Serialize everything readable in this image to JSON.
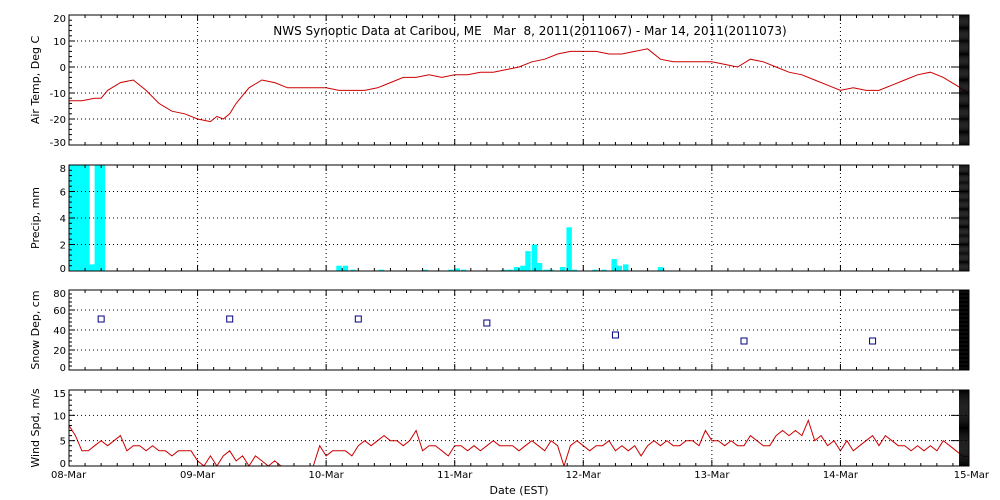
{
  "chart_data": {
    "type": "multi-panel time series",
    "title": "NWS Synoptic Data at Caribou, ME   Mar  8, 2011(2011067) - Mar 14, 2011(2011073)",
    "xlabel": "Date (EST)",
    "x_ticks": [
      "08-Mar",
      "09-Mar",
      "10-Mar",
      "11-Mar",
      "12-Mar",
      "13-Mar",
      "14-Mar",
      "15-Mar"
    ],
    "x_unit": "days since 08-Mar 00:00 EST",
    "xlim": [
      0,
      7
    ],
    "grid": true,
    "colors": {
      "temp": "#cc0000",
      "precip": "#00ffff",
      "snow": "#000080",
      "wind": "#cc0000",
      "grid": "#000000"
    },
    "panels": [
      {
        "id": "air-temp",
        "type": "line",
        "ylabel": "Air Temp, Deg C",
        "ylim": [
          -30,
          20
        ],
        "y_ticks": [
          -30,
          -20,
          -10,
          0,
          10,
          20
        ],
        "series": [
          {
            "x": [
              0.0,
              0.1,
              0.2,
              0.25,
              0.3,
              0.4,
              0.5,
              0.6,
              0.7,
              0.8,
              0.9,
              1.0,
              1.1,
              1.15,
              1.2,
              1.25,
              1.3,
              1.4,
              1.5,
              1.6,
              1.7,
              1.8,
              1.9,
              2.0,
              2.1,
              2.2,
              2.3,
              2.4,
              2.5,
              2.6,
              2.7,
              2.8,
              2.9,
              3.0,
              3.1,
              3.2,
              3.3,
              3.4,
              3.5,
              3.6,
              3.7,
              3.8,
              3.9,
              4.0,
              4.1,
              4.2,
              4.3,
              4.4,
              4.5,
              4.6,
              4.7,
              4.8,
              4.9,
              5.0,
              5.1,
              5.2,
              5.3,
              5.4,
              5.5,
              5.6,
              5.7,
              5.8,
              5.9,
              6.0,
              6.1,
              6.2,
              6.3,
              6.4,
              6.5,
              6.6,
              6.7,
              6.8,
              6.9,
              7.0
            ],
            "y": [
              -13,
              -13,
              -12,
              -12,
              -9,
              -6,
              -5,
              -9,
              -14,
              -17,
              -18,
              -20,
              -21,
              -19,
              -20,
              -18,
              -14,
              -8,
              -5,
              -6,
              -8,
              -8,
              -8,
              -8,
              -9,
              -9,
              -9,
              -8,
              -6,
              -4,
              -4,
              -3,
              -4,
              -3,
              -3,
              -2,
              -2,
              -1,
              0,
              2,
              3,
              5,
              6,
              6,
              6,
              5,
              5,
              6,
              7,
              3,
              2,
              2,
              2,
              2,
              1,
              0,
              3,
              2,
              0,
              -2,
              -3,
              -5,
              -7,
              -9,
              -8,
              -9,
              -9,
              -7,
              -5,
              -3,
              -2,
              -4,
              -7,
              -10
            ]
          }
        ]
      },
      {
        "id": "precip",
        "type": "bar",
        "ylabel": "Precip, mm",
        "ylim": [
          0,
          8
        ],
        "y_ticks": [
          0,
          2,
          4,
          6,
          8
        ],
        "bar_width_days": 0.042,
        "series": [
          {
            "x": [
              0.02,
              0.06,
              0.1,
              0.14,
              0.18,
              0.22,
              0.26,
              2.1,
              2.15,
              2.21,
              2.43,
              2.77,
              2.97,
              3.02,
              3.07,
              3.38,
              3.43,
              3.48,
              3.53,
              3.57,
              3.62,
              3.66,
              3.71,
              3.75,
              3.84,
              3.89,
              3.93,
              4.09,
              4.16,
              4.24,
              4.28,
              4.33,
              4.6
            ],
            "y": [
              8,
              8,
              8,
              8,
              0.5,
              8,
              8,
              0.4,
              0.4,
              0.1,
              0.1,
              0.1,
              0.1,
              0.2,
              0.1,
              0.1,
              0.1,
              0.3,
              0.4,
              1.5,
              2.0,
              0.6,
              0.1,
              0.1,
              0.3,
              3.3,
              0.1,
              0.1,
              0.1,
              0.9,
              0.4,
              0.5,
              0.3
            ]
          }
        ]
      },
      {
        "id": "snow-depth",
        "type": "scatter",
        "ylabel": "Snow Dep, cm",
        "ylim": [
          0,
          80
        ],
        "y_ticks": [
          0,
          20,
          40,
          60,
          80
        ],
        "series": [
          {
            "x": [
              0.25,
              1.25,
              2.25,
              3.25,
              4.25,
              5.25,
              6.25
            ],
            "y": [
              51,
              51,
              51,
              47,
              35,
              29,
              29
            ]
          }
        ]
      },
      {
        "id": "wind-speed",
        "type": "line",
        "ylabel": "Wind Spd, m/s",
        "ylim": [
          0,
          15
        ],
        "y_ticks": [
          0,
          5,
          10,
          15
        ],
        "series": [
          {
            "x": [
              0.0,
              0.05,
              0.1,
              0.15,
              0.2,
              0.25,
              0.3,
              0.35,
              0.4,
              0.45,
              0.5,
              0.55,
              0.6,
              0.65,
              0.7,
              0.75,
              0.8,
              0.85,
              0.9,
              0.95,
              1.0,
              1.05,
              1.1,
              1.15,
              1.2,
              1.25,
              1.3,
              1.35,
              1.4,
              1.45,
              1.5,
              1.55,
              1.6,
              1.65,
              1.7,
              1.75,
              1.8,
              1.85,
              1.9,
              1.95,
              2.0,
              2.05,
              2.1,
              2.15,
              2.2,
              2.25,
              2.3,
              2.35,
              2.4,
              2.45,
              2.5,
              2.55,
              2.6,
              2.65,
              2.7,
              2.75,
              2.8,
              2.85,
              2.9,
              2.95,
              3.0,
              3.05,
              3.1,
              3.15,
              3.2,
              3.25,
              3.3,
              3.35,
              3.4,
              3.45,
              3.5,
              3.55,
              3.6,
              3.65,
              3.7,
              3.75,
              3.8,
              3.85,
              3.9,
              3.95,
              4.0,
              4.05,
              4.1,
              4.15,
              4.2,
              4.25,
              4.3,
              4.35,
              4.4,
              4.45,
              4.5,
              4.55,
              4.6,
              4.65,
              4.7,
              4.75,
              4.8,
              4.85,
              4.9,
              4.95,
              5.0,
              5.05,
              5.1,
              5.15,
              5.2,
              5.25,
              5.3,
              5.35,
              5.4,
              5.45,
              5.5,
              5.55,
              5.6,
              5.65,
              5.7,
              5.75,
              5.8,
              5.85,
              5.9,
              5.95,
              6.0,
              6.05,
              6.1,
              6.15,
              6.2,
              6.25,
              6.3,
              6.35,
              6.4,
              6.45,
              6.5,
              6.55,
              6.6,
              6.65,
              6.7,
              6.75,
              6.8,
              6.85,
              6.9,
              6.95,
              7.0
            ],
            "y": [
              8,
              6,
              3,
              3,
              4,
              5,
              4,
              5,
              6,
              3,
              4,
              4,
              3,
              4,
              3,
              3,
              2,
              3,
              3,
              3,
              1,
              0,
              2,
              0,
              2,
              3,
              1,
              2,
              0,
              2,
              1,
              0,
              1,
              0,
              0,
              0,
              0,
              0,
              0,
              4,
              2,
              3,
              3,
              3,
              2,
              4,
              5,
              4,
              5,
              6,
              5,
              5,
              4,
              5,
              7,
              3,
              4,
              4,
              3,
              2,
              4,
              4,
              3,
              4,
              3,
              4,
              5,
              4,
              4,
              4,
              3,
              4,
              5,
              4,
              3,
              5,
              4,
              0,
              4,
              5,
              4,
              3,
              4,
              4,
              5,
              3,
              4,
              3,
              4,
              2,
              4,
              5,
              4,
              5,
              4,
              4,
              5,
              5,
              4,
              7,
              5,
              5,
              4,
              5,
              4,
              4,
              6,
              5,
              4,
              4,
              6,
              7,
              6,
              7,
              6,
              9,
              5,
              6,
              4,
              5,
              3,
              5,
              3,
              4,
              5,
              6,
              4,
              6,
              5,
              4,
              4,
              3,
              4,
              3,
              4,
              3,
              5,
              4,
              3,
              2,
              2
            ]
          }
        ]
      }
    ]
  }
}
